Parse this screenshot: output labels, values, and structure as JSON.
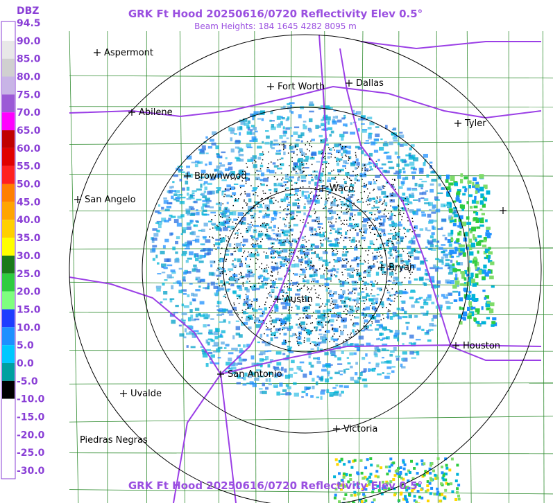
{
  "header": {
    "title": "GRK Ft Hood 20250616/0720 Reflectivity Elev 0.5°",
    "subtitle": "Beam Heights: 184 1645 4282 8095 m"
  },
  "legend": {
    "unit": "DBZ",
    "labels": [
      "94.5",
      "90.0",
      "85.0",
      "80.0",
      "75.0",
      "70.0",
      "65.0",
      "60.0",
      "55.0",
      "50.0",
      "45.0",
      "40.0",
      "35.0",
      "30.0",
      "25.0",
      "20.0",
      "15.0",
      "10.0",
      "5.0",
      "0.0",
      "-5.0",
      "-10.0",
      "-15.0",
      "-20.0",
      "-25.0",
      "-30.0"
    ]
  },
  "cities": [
    "Aspermont",
    "Fort Worth",
    "Dallas",
    "Abilene",
    "Tyler",
    "Brownwood",
    "Waco",
    "San Angelo",
    "Bryan",
    "Austin",
    "Houston",
    "San Antonio",
    "Uvalde",
    "Victoria",
    "Piedras Negras"
  ],
  "footer": {
    "title": "GRK Ft Hood 20250616/0720 Reflectivity Elev 0.5°"
  }
}
